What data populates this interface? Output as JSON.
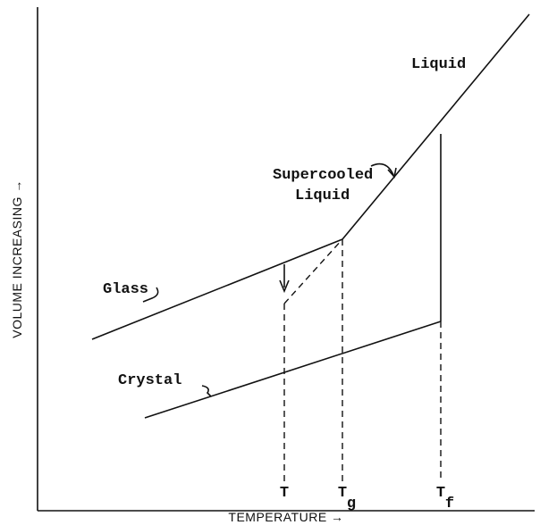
{
  "axes": {
    "y_label": "VOLUME INCREASING →",
    "x_label": "TEMPERATURE →"
  },
  "regions": {
    "liquid": "Liquid",
    "supercooled": [
      "Supercooled",
      "Liquid"
    ],
    "glass": "Glass",
    "crystal": "Crystal"
  },
  "markers": [
    {
      "main": "T"
    },
    {
      "main": "T",
      "sub": "g"
    },
    {
      "main": "T",
      "sub": "f"
    }
  ]
}
